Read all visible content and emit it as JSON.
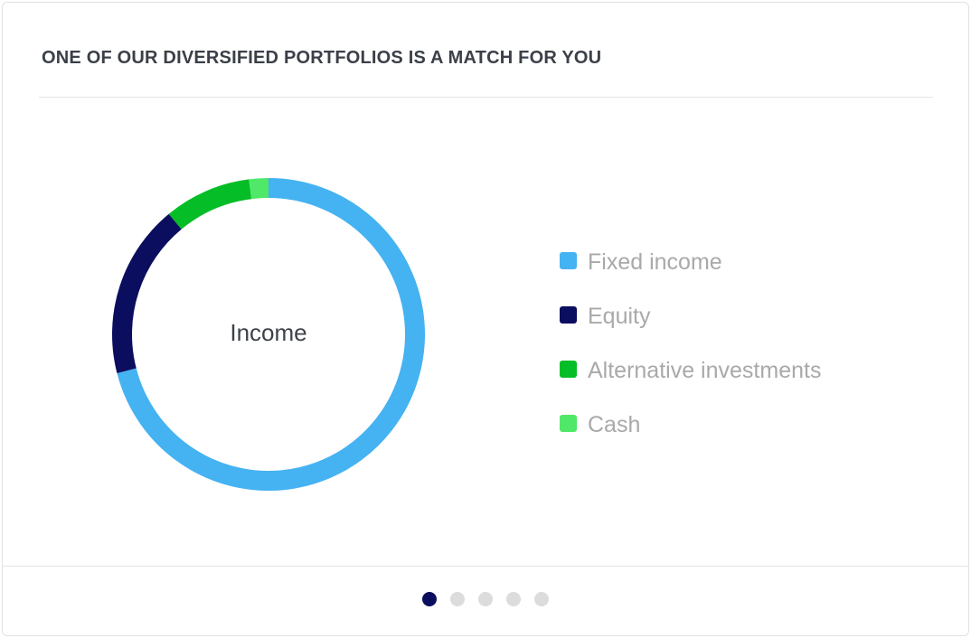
{
  "header": {
    "title": "ONE OF OUR DIVERSIFIED PORTFOLIOS IS A MATCH FOR YOU"
  },
  "chart_data": {
    "type": "pie",
    "variant": "donut",
    "center_label": "Income",
    "legend_position": "right",
    "categories": [
      "Fixed income",
      "Equity",
      "Alternative investments",
      "Cash"
    ],
    "values": [
      71,
      18,
      9,
      2
    ],
    "unit": "%",
    "colors": [
      "#45b2f2",
      "#0b0e5e",
      "#05bd26",
      "#4fe868"
    ],
    "start_angle_deg": 0
  },
  "pagination": {
    "count": 5,
    "active_index": 0
  },
  "colors": {
    "title": "#3b4048",
    "legend_text": "#a9a9a9",
    "dot_active": "#0b0e5e",
    "dot_inactive": "#dcdcdc"
  }
}
